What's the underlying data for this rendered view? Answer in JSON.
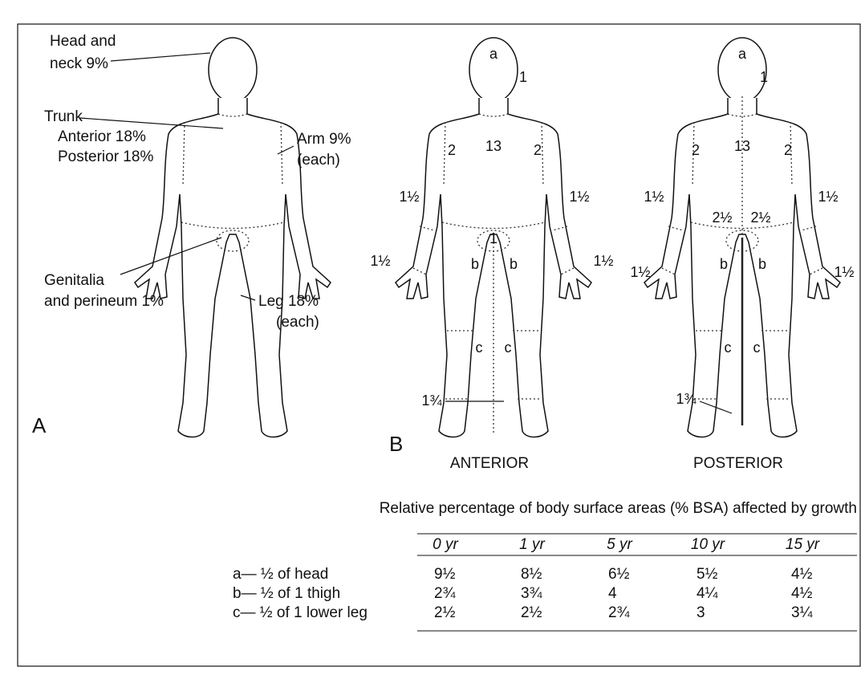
{
  "figure_a": {
    "head_line1": "Head and",
    "head_line2": "neck 9%",
    "trunk": "Trunk",
    "trunk_anterior": "Anterior 18%",
    "trunk_posterior": "Posterior 18%",
    "arm_line1": "Arm 9%",
    "arm_line2": "(each)",
    "genitalia_line1": "Genitalia",
    "genitalia_line2": "and perineum 1%",
    "leg_line1": "Leg 18%",
    "leg_line2": "(each)",
    "panel_label": "A"
  },
  "figure_b": {
    "panel_label": "B",
    "anterior": {
      "head": "a",
      "neck": "1",
      "trunk": "13",
      "upper_arm_left": "2",
      "upper_arm_right": "2",
      "forearm_left": "1½",
      "forearm_right": "1½",
      "genitalia": "1",
      "hand_left": "1½",
      "hand_right": "1½",
      "thigh_left": "b",
      "thigh_right": "b",
      "lower_leg_left": "c",
      "lower_leg_right": "c",
      "foot": "1¾",
      "caption": "ANTERIOR"
    },
    "posterior": {
      "head": "a",
      "neck": "1",
      "trunk": "13",
      "upper_arm_left": "2",
      "upper_arm_right": "2",
      "forearm_left": "1½",
      "forearm_right": "1½",
      "buttock_left": "2½",
      "buttock_right": "2½",
      "hand_left": "1½",
      "hand_right": "1½",
      "thigh_left": "b",
      "thigh_right": "b",
      "lower_leg_left": "c",
      "lower_leg_right": "c",
      "foot": "1¾",
      "caption": "POSTERIOR"
    }
  },
  "table": {
    "title": "Relative percentage of body surface areas (% BSA) affected by growth",
    "columns": [
      "0 yr",
      "1 yr",
      "5 yr",
      "10 yr",
      "15 yr"
    ],
    "rows": [
      {
        "label": "a— ½ of head",
        "values": [
          "9½",
          "8½",
          "6½",
          "5½",
          "4½"
        ]
      },
      {
        "label": "b— ½ of 1 thigh",
        "values": [
          "2¾",
          "3¾",
          "4",
          "4¼",
          "4½"
        ]
      },
      {
        "label": "c— ½ of 1 lower leg",
        "values": [
          "2½",
          "2½",
          "2¾",
          "3",
          "3¼"
        ]
      }
    ]
  }
}
